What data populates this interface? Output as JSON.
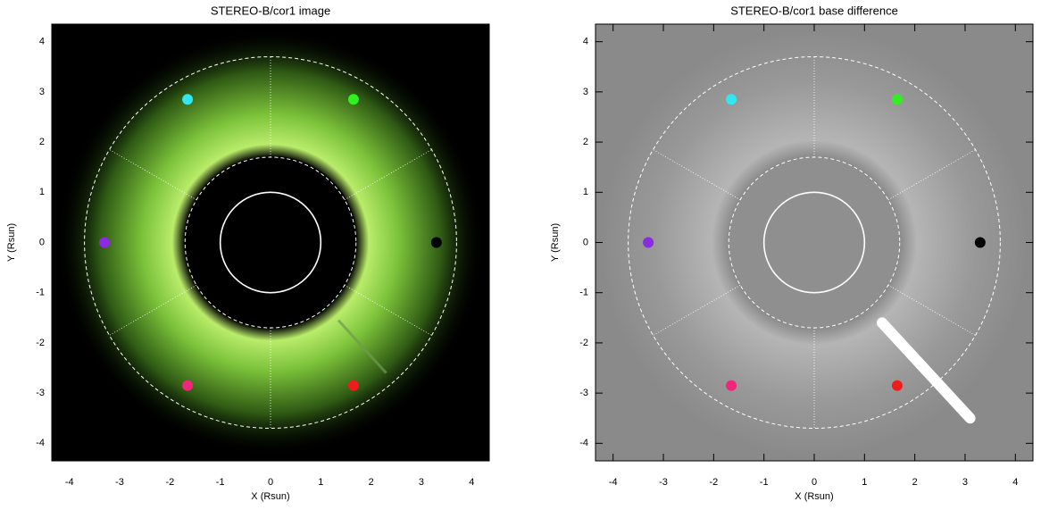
{
  "chart_data": [
    {
      "type": "scatter",
      "title": "STEREO-B/cor1 image",
      "xlabel": "X (Rsun)",
      "ylabel": "Y (Rsun)",
      "background": "#000000",
      "corona": "#8fd13a",
      "x": [
        -1.65,
        1.65,
        -3.3,
        3.3,
        -1.65,
        1.65
      ],
      "y": [
        2.85,
        2.85,
        0,
        0,
        -2.85,
        -2.85
      ],
      "colors": [
        "#33e6f0",
        "#33ee22",
        "#8a2be2",
        "#000000",
        "#f0267a",
        "#ee1c1c"
      ],
      "xlim": [
        -4.35,
        4.35
      ],
      "ylim": [
        -4.35,
        4.35
      ],
      "xticks": [
        -4,
        -3,
        -2,
        -1,
        0,
        1,
        2,
        3,
        4
      ],
      "yticks": [
        -4,
        -3,
        -2,
        -1,
        0,
        1,
        2,
        3,
        4
      ],
      "rings": [
        1,
        1.7,
        3.7
      ],
      "spokes": [
        30,
        90,
        150,
        210,
        270,
        330
      ]
    },
    {
      "type": "scatter",
      "title": "STEREO-B/cor1 base difference",
      "xlabel": "X (Rsun)",
      "ylabel": "Y (Rsun)",
      "background": "#8a8a8a",
      "corona": null,
      "x": [
        -1.65,
        1.65,
        -3.3,
        3.3,
        -1.65,
        1.65
      ],
      "y": [
        2.85,
        2.85,
        0,
        0,
        -2.85,
        -2.85
      ],
      "colors": [
        "#33e6f0",
        "#33ee22",
        "#8a2be2",
        "#000000",
        "#f0267a",
        "#ee1c1c"
      ],
      "xlim": [
        -4.35,
        4.35
      ],
      "ylim": [
        -4.35,
        4.35
      ],
      "xticks": [
        -4,
        -3,
        -2,
        -1,
        0,
        1,
        2,
        3,
        4
      ],
      "yticks": [
        -4,
        -3,
        -2,
        -1,
        0,
        1,
        2,
        3,
        4
      ],
      "rings": [
        1,
        1.7,
        3.7
      ],
      "spokes": [
        30,
        90,
        150,
        210,
        270,
        330
      ]
    }
  ]
}
